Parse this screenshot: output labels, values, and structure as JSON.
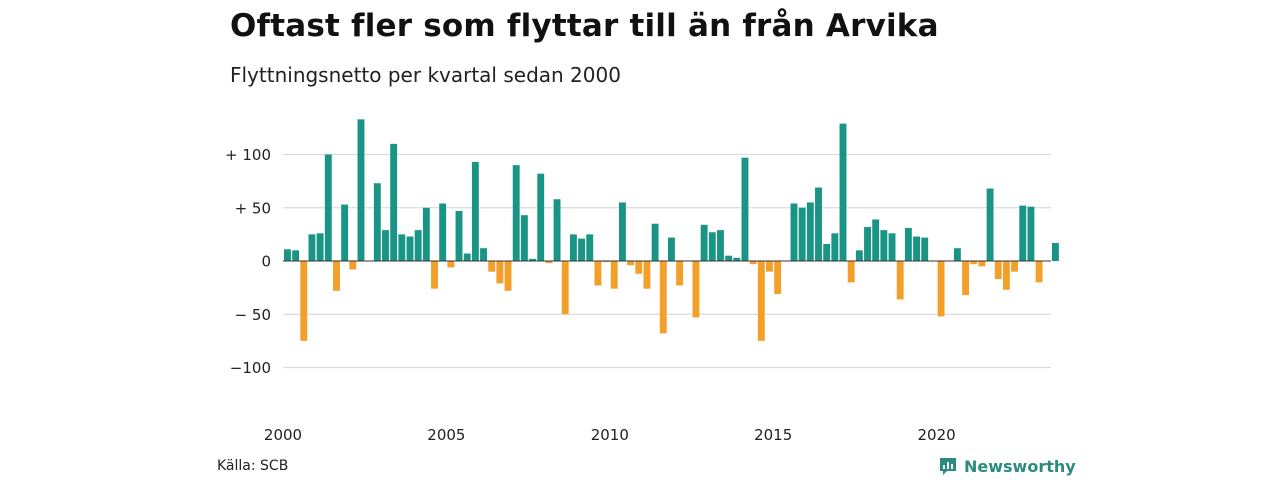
{
  "header": {
    "title": "Oftast fler som flyttar till än från Arvika",
    "subtitle": "Flyttningsnetto per kvartal sedan 2000"
  },
  "footer": {
    "source": "Källa: SCB",
    "brand": "Newsworthy"
  },
  "colors": {
    "positive": "#1a9585",
    "negative": "#f2a02a",
    "grid": "#dcdcdc",
    "brand": "#2a8c7f"
  },
  "chart_data": {
    "type": "bar",
    "title": "Oftast fler som flyttar till än från Arvika",
    "subtitle": "Flyttningsnetto per kvartal sedan 2000",
    "x_start": "2000 Q1",
    "x_ticks": [
      "2000",
      "2005",
      "2010",
      "2015",
      "2020"
    ],
    "y_ticks": [
      {
        "value": 100,
        "label": "+ 100"
      },
      {
        "value": 50,
        "label": "+  50"
      },
      {
        "value": 0,
        "label": "0"
      },
      {
        "value": -50,
        "label": "− 50"
      },
      {
        "value": -100,
        "label": "−100"
      }
    ],
    "ylim": [
      -130,
      135
    ],
    "grid": true,
    "values": [
      11,
      10,
      -75,
      25,
      26,
      100,
      -28,
      53,
      -8,
      133,
      0,
      73,
      29,
      110,
      25,
      23,
      29,
      50,
      -26,
      54,
      -6,
      47,
      7,
      93,
      12,
      -10,
      -21,
      -28,
      90,
      43,
      2,
      82,
      -2,
      58,
      -50,
      25,
      21,
      25,
      -23,
      -1,
      -26,
      55,
      -4,
      -12,
      -26,
      35,
      -68,
      22,
      -23,
      0,
      -53,
      34,
      27,
      29,
      5,
      3,
      97,
      -3,
      -75,
      -10,
      -31,
      0,
      54,
      50,
      55,
      69,
      16,
      26,
      129,
      -20,
      10,
      32,
      39,
      29,
      26,
      -36,
      31,
      23,
      22,
      0,
      -52,
      0,
      12,
      -32,
      -3,
      -5,
      68,
      -17,
      -27,
      -10,
      52,
      51,
      -20,
      0,
      17
    ]
  }
}
